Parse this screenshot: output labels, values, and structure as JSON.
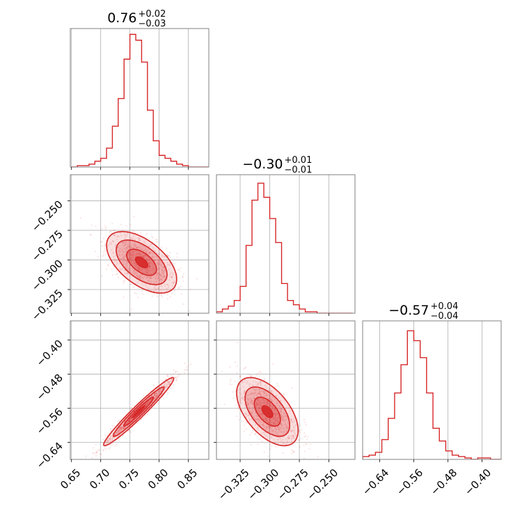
{
  "chart_data": {
    "type": "corner",
    "color": "#d62728",
    "grid": true,
    "panels": [
      {
        "kind": "hist",
        "row": 0,
        "col": 0,
        "title": {
          "median": "0.76",
          "plus": "+0.02",
          "minus": "−0.03"
        },
        "bin_edges": [
          0.65,
          0.66,
          0.67,
          0.68,
          0.69,
          0.7,
          0.71,
          0.72,
          0.73,
          0.74,
          0.75,
          0.76,
          0.77,
          0.78,
          0.79,
          0.8,
          0.81,
          0.82,
          0.83,
          0.84,
          0.85,
          0.86,
          0.87,
          0.88,
          0.89,
          0.9
        ],
        "counts": [
          0,
          1,
          1,
          2,
          4,
          6,
          13,
          28,
          47,
          74,
          91,
          87,
          72,
          39,
          18,
          8,
          6,
          4,
          2,
          1,
          0,
          0,
          0,
          0,
          0
        ],
        "xlim": [
          0.648,
          0.885
        ],
        "ylim": [
          0,
          95
        ]
      },
      {
        "kind": "scatter2d",
        "row": 1,
        "col": 0,
        "x_param": "p1",
        "y_param": "p2",
        "xlim": [
          0.648,
          0.885
        ],
        "ylim": [
          -0.345,
          -0.228
        ],
        "center": [
          0.77,
          -0.302
        ],
        "spread": [
          0.03,
          0.013
        ],
        "correlation": -0.55,
        "n_points": 900,
        "y_ticks": [
          -0.25,
          -0.275,
          -0.3,
          -0.325
        ],
        "y_tick_labels": [
          "−0.250",
          "−0.275",
          "−0.300",
          "−0.325"
        ]
      },
      {
        "kind": "hist",
        "row": 1,
        "col": 1,
        "title": {
          "median": "−0.30",
          "plus": "+0.01",
          "minus": "−0.01"
        },
        "bin_edges": [
          -0.345,
          -0.34,
          -0.335,
          -0.33,
          -0.325,
          -0.32,
          -0.315,
          -0.31,
          -0.305,
          -0.3,
          -0.295,
          -0.29,
          -0.285,
          -0.28,
          -0.275,
          -0.27,
          -0.265,
          -0.26,
          -0.255,
          -0.25,
          -0.245,
          -0.24,
          -0.235,
          -0.23
        ],
        "counts": [
          1,
          3,
          5,
          9,
          19,
          48,
          80,
          92,
          82,
          67,
          50,
          21,
          9,
          6,
          3,
          1,
          1,
          0,
          0,
          0,
          0,
          0,
          0
        ],
        "xlim": [
          -0.345,
          -0.228
        ],
        "ylim": [
          0,
          98
        ]
      },
      {
        "kind": "scatter2d",
        "row": 2,
        "col": 0,
        "x_param": "p1",
        "y_param": "p3",
        "xlim": [
          0.648,
          0.885
        ],
        "ylim": [
          -0.68,
          -0.355
        ],
        "center": [
          0.765,
          -0.568
        ],
        "spread": [
          0.03,
          0.04
        ],
        "correlation": 0.97,
        "n_points": 900,
        "x_ticks": [
          0.65,
          0.7,
          0.75,
          0.8,
          0.85
        ],
        "x_tick_labels": [
          "0.65",
          "0.70",
          "0.75",
          "0.80",
          "0.85"
        ],
        "y_ticks": [
          -0.4,
          -0.48,
          -0.56,
          -0.64
        ],
        "y_tick_labels": [
          "−0.40",
          "−0.48",
          "−0.56",
          "−0.64"
        ]
      },
      {
        "kind": "scatter2d",
        "row": 2,
        "col": 1,
        "x_param": "p2",
        "y_param": "p3",
        "xlim": [
          -0.345,
          -0.228
        ],
        "ylim": [
          -0.68,
          -0.355
        ],
        "center": [
          -0.302,
          -0.568
        ],
        "spread": [
          0.013,
          0.04
        ],
        "correlation": -0.55,
        "n_points": 900,
        "x_ticks": [
          -0.325,
          -0.3,
          -0.275,
          -0.25
        ],
        "x_tick_labels": [
          "−0.325",
          "−0.300",
          "−0.275",
          "−0.250"
        ]
      },
      {
        "kind": "hist",
        "row": 2,
        "col": 2,
        "title": {
          "median": "−0.57",
          "plus": "+0.04",
          "minus": "−0.04"
        },
        "bin_edges": [
          -0.68,
          -0.665,
          -0.65,
          -0.635,
          -0.62,
          -0.605,
          -0.59,
          -0.575,
          -0.56,
          -0.545,
          -0.53,
          -0.515,
          -0.5,
          -0.485,
          -0.47,
          -0.455,
          -0.44,
          -0.425,
          -0.41,
          -0.395,
          -0.38,
          -0.365,
          -0.35
        ],
        "counts": [
          2,
          3,
          5,
          14,
          29,
          47,
          67,
          91,
          84,
          72,
          47,
          22,
          13,
          6,
          3,
          2,
          1,
          0,
          1,
          1,
          0,
          0
        ],
        "xlim": [
          -0.68,
          -0.355
        ],
        "ylim": [
          0,
          98
        ],
        "x_ticks": [
          -0.64,
          -0.56,
          -0.48,
          -0.4
        ],
        "x_tick_labels": [
          "−0.64",
          "−0.56",
          "−0.48",
          "−0.40"
        ]
      }
    ]
  }
}
